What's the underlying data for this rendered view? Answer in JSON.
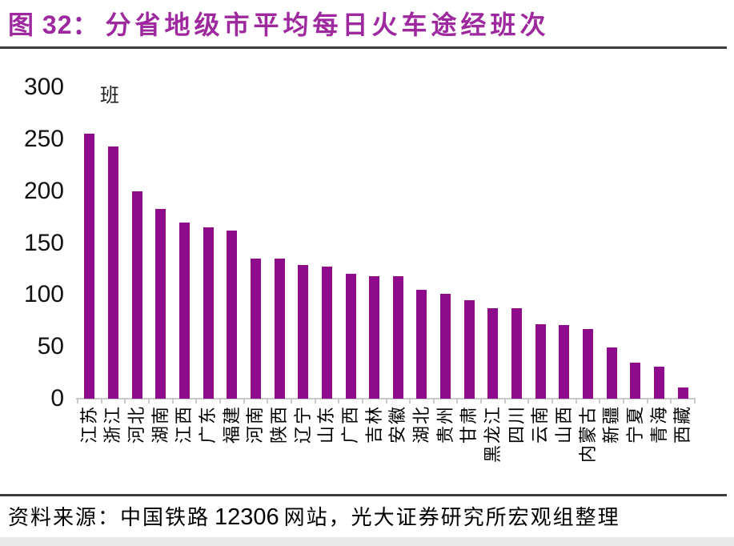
{
  "figure": {
    "number_label": "图 32：",
    "title": "分省地级市平均每日火车途经班次",
    "source_prefix": "资料来源：中国铁路",
    "source_number": "12306",
    "source_suffix": "网站，光大证券研究所宏观组整理"
  },
  "chart_data": {
    "type": "bar",
    "title": "分省地级市平均每日火车途经班次",
    "unit_label": "班",
    "xlabel": "",
    "ylabel": "班",
    "ylim": [
      0,
      300
    ],
    "yticks": [
      0,
      50,
      100,
      150,
      200,
      250,
      300
    ],
    "grid": false,
    "legend_position": "none",
    "categories": [
      "江苏",
      "浙江",
      "河北",
      "湖南",
      "江西",
      "广东",
      "福建",
      "河南",
      "陕西",
      "辽宁",
      "山东",
      "广西",
      "吉林",
      "安徽",
      "湖北",
      "贵州",
      "甘肃",
      "黑龙江",
      "四川",
      "云南",
      "山西",
      "内蒙古",
      "新疆",
      "宁夏",
      "青海",
      "西藏"
    ],
    "values": [
      255,
      243,
      200,
      183,
      170,
      165,
      162,
      135,
      135,
      129,
      127,
      120,
      118,
      118,
      105,
      101,
      95,
      87,
      87,
      72,
      71,
      67,
      49,
      35,
      31,
      11
    ]
  },
  "colors": {
    "title": "#9E289E",
    "bar": "#8E0C8C",
    "rule": "#3C3C3C",
    "axis": "#C9C9C9",
    "strip": "#E8E8E8"
  }
}
